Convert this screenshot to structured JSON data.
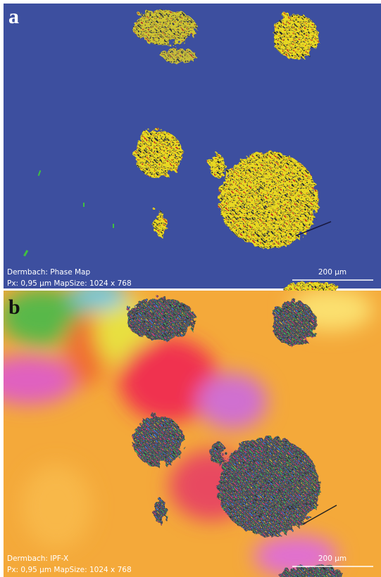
{
  "panels": [
    {
      "label": "a",
      "caption_line1": "Dermbach:  Phase Map",
      "caption_line2": "Px: 0,95 µm  MapSize: 1024 x 768",
      "scale_bar": "200 µm"
    },
    {
      "label": "b",
      "caption_line1": "Dermbach:  IPF-X",
      "caption_line2": "Px: 0,95 µm  MapSize: 1024 x 768",
      "scale_bar": "200 µm"
    }
  ]
}
